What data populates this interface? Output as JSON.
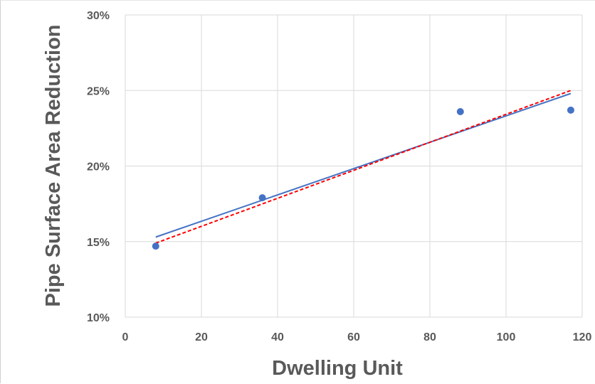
{
  "chart_data": {
    "type": "scatter",
    "title": "",
    "xlabel": "Dwelling Unit",
    "ylabel": "Pipe Surface Area Reduction",
    "xlim": [
      0,
      120
    ],
    "ylim": [
      0.1,
      0.3
    ],
    "x_ticks": [
      0,
      20,
      40,
      60,
      80,
      100,
      120
    ],
    "x_tick_labels": [
      "0",
      "20",
      "40",
      "60",
      "80",
      "100",
      "120"
    ],
    "y_ticks": [
      0.1,
      0.15,
      0.2,
      0.25,
      0.3
    ],
    "y_tick_labels": [
      "10%",
      "15%",
      "20%",
      "25%",
      "30%"
    ],
    "grid": true,
    "legend": "none",
    "series": [
      {
        "points": [
          {
            "x": 8,
            "y": 0.147
          },
          {
            "x": 36,
            "y": 0.179
          },
          {
            "x": 88,
            "y": 0.236
          },
          {
            "x": 117,
            "y": 0.237
          }
        ],
        "color": "#4472c4",
        "marker": "circle"
      }
    ],
    "trendlines": [
      {
        "style": "solid",
        "color": "#4472c4",
        "x": [
          8,
          117
        ],
        "y": [
          0.153,
          0.248
        ]
      },
      {
        "style": "dashed",
        "color": "#ff0000",
        "x": [
          8,
          117
        ],
        "y": [
          0.149,
          0.25
        ]
      }
    ]
  }
}
